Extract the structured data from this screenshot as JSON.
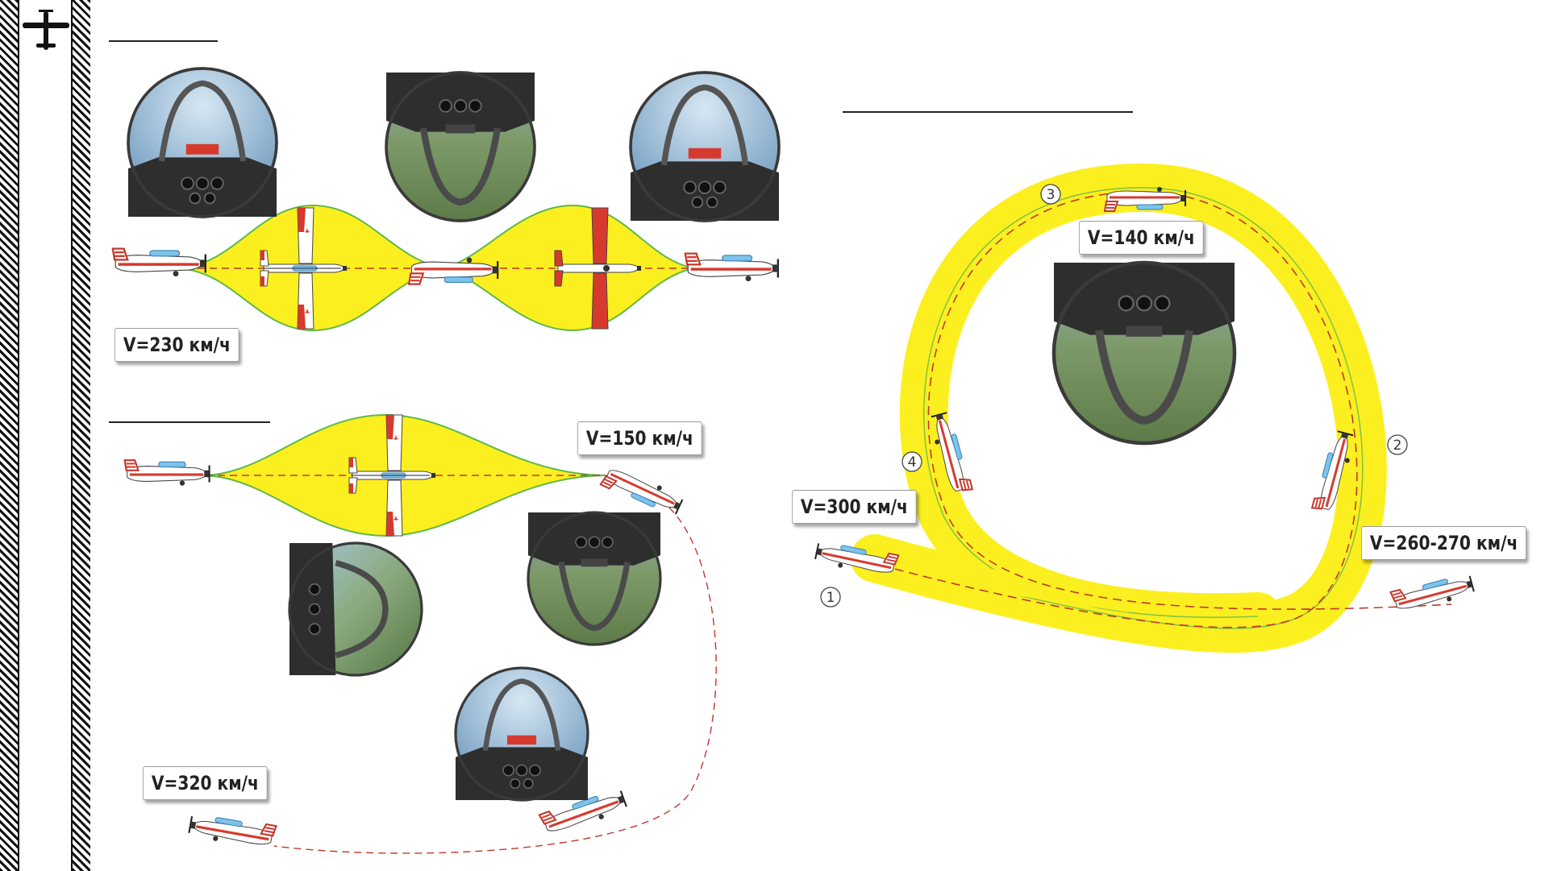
{
  "sidebar": {
    "logo_icon": "airplane-silhouette-icon"
  },
  "colors": {
    "ribbon_fill": "#fcef1f",
    "ribbon_edge": "#5fb84a",
    "path_dash": "#c0392b",
    "plane_body": "#ffffff",
    "plane_accent": "#d63a2f",
    "canopy": "#7ec3ea"
  },
  "figures": {
    "barrel_roll": {
      "speed_label": "V=230 км/ч"
    },
    "split_s": {
      "entry_speed_label": "V=150 км/ч",
      "exit_speed_label": "V=320 км/ч"
    },
    "loop": {
      "top_speed_label": "V=140 км/ч",
      "entry_speed_label": "V=300 км/ч",
      "exit_speed_label": "V=260-270 км/ч",
      "markers": [
        "1",
        "2",
        "3",
        "4"
      ]
    }
  },
  "cockpit_views": [
    {
      "name": "cockpit-view-level-1",
      "attitude": "upright"
    },
    {
      "name": "cockpit-view-inverted-1",
      "attitude": "inverted"
    },
    {
      "name": "cockpit-view-level-2",
      "attitude": "upright"
    },
    {
      "name": "cockpit-view-inverted-2",
      "attitude": "inverted"
    },
    {
      "name": "cockpit-view-side",
      "attitude": "side"
    },
    {
      "name": "cockpit-view-level-3",
      "attitude": "upright"
    },
    {
      "name": "cockpit-view-inverted-top",
      "attitude": "inverted"
    }
  ]
}
